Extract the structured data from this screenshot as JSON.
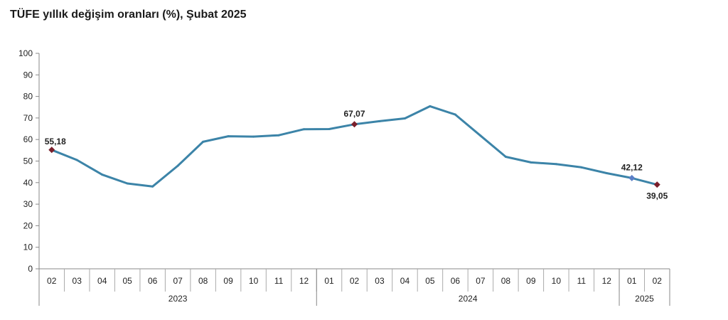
{
  "chart_data": {
    "type": "line",
    "title": "TÜFE yıllık değişim oranları (%), Şubat 2025",
    "xlabel": "",
    "ylabel": "",
    "ylim": [
      0,
      100
    ],
    "yticks": [
      0,
      10,
      20,
      30,
      40,
      50,
      60,
      70,
      80,
      90,
      100
    ],
    "grid": false,
    "categories": [
      "02",
      "03",
      "04",
      "05",
      "06",
      "07",
      "08",
      "09",
      "10",
      "11",
      "12",
      "01",
      "02",
      "03",
      "04",
      "05",
      "06",
      "07",
      "08",
      "09",
      "10",
      "11",
      "12",
      "01",
      "02"
    ],
    "year_groups": [
      {
        "label": "2023",
        "count": 11
      },
      {
        "label": "2024",
        "count": 12
      },
      {
        "label": "2025",
        "count": 2
      }
    ],
    "series": [
      {
        "color": "#3c84a8",
        "values": [
          55.18,
          50.51,
          43.68,
          39.59,
          38.21,
          47.83,
          58.94,
          61.53,
          61.36,
          61.98,
          64.77,
          64.86,
          67.07,
          68.5,
          69.8,
          75.45,
          71.6,
          61.78,
          51.97,
          49.38,
          48.58,
          47.09,
          44.38,
          42.12,
          39.05
        ]
      }
    ],
    "annotations": [
      {
        "index": 0,
        "text": "55,18",
        "marker_color": "#7a1f2b"
      },
      {
        "index": 12,
        "text": "67,07",
        "marker_color": "#7a1f2b"
      },
      {
        "index": 23,
        "text": "42,12",
        "marker_color": "#5b7fc7"
      },
      {
        "index": 24,
        "text": "39,05",
        "marker_color": "#7a1f2b"
      }
    ]
  }
}
